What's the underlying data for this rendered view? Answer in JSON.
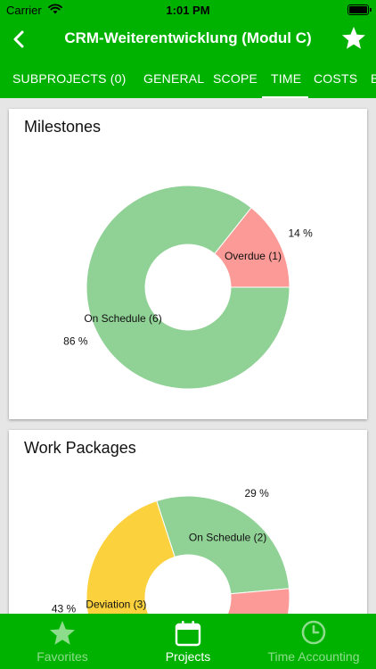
{
  "status": {
    "carrier": "Carrier",
    "time": "1:01 PM"
  },
  "nav": {
    "title": "CRM-Weiterentwicklung (Modul C)"
  },
  "tabs": [
    {
      "label": "SUBPROJECTS (0)"
    },
    {
      "label": "GENERAL"
    },
    {
      "label": "SCOPE"
    },
    {
      "label": "TIME"
    },
    {
      "label": "COSTS"
    },
    {
      "label": "B"
    }
  ],
  "active_tab": "TIME",
  "colors": {
    "brand": "#00b200",
    "on_schedule": "#90d195",
    "overdue": "#fb9a96",
    "deviation": "#fbd13d"
  },
  "chart_data": [
    {
      "type": "pie",
      "title": "Milestones",
      "slices": [
        {
          "label": "On Schedule (6)",
          "value": 6,
          "percent_label": "86 %",
          "color": "#90d195"
        },
        {
          "label": "Overdue (1)",
          "value": 1,
          "percent_label": "14 %",
          "color": "#fb9a96"
        }
      ]
    },
    {
      "type": "pie",
      "title": "Work Packages",
      "slices": [
        {
          "label": "On Schedule (2)",
          "value": 2,
          "percent_label": "29 %",
          "color": "#90d195"
        },
        {
          "label": "",
          "value": 2,
          "percent_label": "",
          "color": "#fb9a96"
        },
        {
          "label": "Deviation (3)",
          "value": 3,
          "percent_label": "43 %",
          "color": "#fbd13d"
        }
      ]
    }
  ],
  "bottom_tabs": [
    {
      "label": "Favorites",
      "icon": "star-icon"
    },
    {
      "label": "Projects",
      "icon": "calendar-icon"
    },
    {
      "label": "Time Accounting",
      "icon": "clock-icon"
    }
  ]
}
